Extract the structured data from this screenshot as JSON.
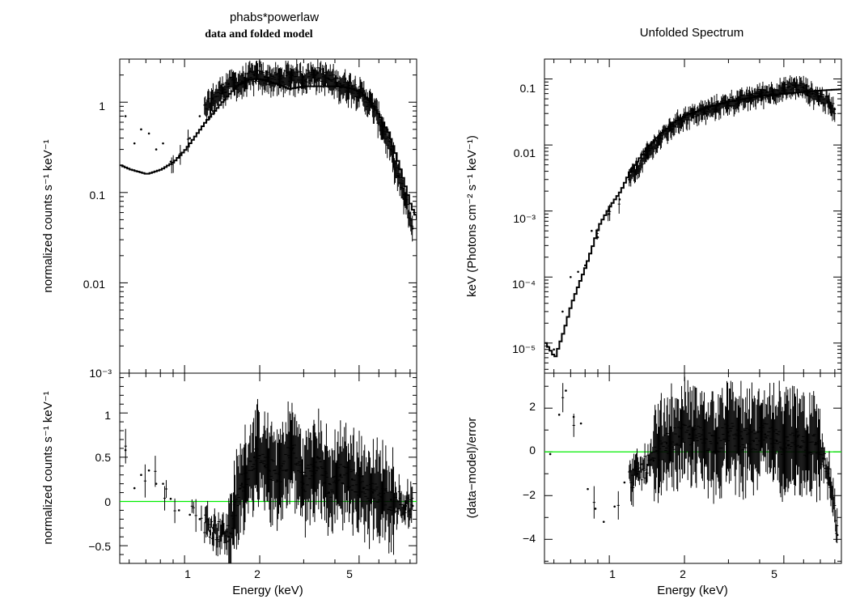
{
  "colors": {
    "data": "#000000",
    "model": "#000000",
    "zero_line": "#00ee00",
    "background": "#ffffff"
  },
  "left": {
    "title": "phabs*powerlaw",
    "subtitle": "data and folded model",
    "top_ylabel": "normalized counts s⁻¹ keV⁻¹",
    "bottom_ylabel": "normalized counts s⁻¹ keV⁻¹",
    "xlabel": "Energy (keV)",
    "x_ticks": [
      "1",
      "2",
      "5"
    ],
    "top_y_ticks": [
      "1",
      "0.1",
      "0.01",
      "10⁻³"
    ],
    "bottom_y_ticks": [
      "1",
      "0.5",
      "0",
      "−0.5"
    ]
  },
  "right": {
    "title": "Unfolded Spectrum",
    "top_ylabel": "keV (Photons cm⁻² s⁻¹ keV⁻¹)",
    "bottom_ylabel": "(data−model)/error",
    "xlabel": "Energy (keV)",
    "x_ticks": [
      "1",
      "2",
      "5"
    ],
    "top_y_ticks": [
      "0.1",
      "0.01",
      "10⁻³",
      "10⁻⁴",
      "10⁻⁵"
    ],
    "bottom_y_ticks": [
      "2",
      "0",
      "−2",
      "−4"
    ]
  },
  "chart_data": [
    {
      "type": "scatter",
      "panel": "left-top",
      "title": "phabs*powerlaw",
      "subtitle": "data and folded model",
      "xlabel": "",
      "ylabel": "normalized counts s⁻¹ keV⁻¹",
      "xscale": "log",
      "yscale": "log",
      "xlim": [
        0.55,
        8.5
      ],
      "ylim": [
        0.001,
        3.0
      ],
      "series": [
        {
          "style": "model",
          "x": [
            0.55,
            0.6,
            0.7,
            0.8,
            0.9,
            1.0,
            1.2,
            1.4,
            1.6,
            1.8,
            2.0,
            2.3,
            2.6,
            3.0,
            3.5,
            4.0,
            4.5,
            5.0,
            5.5,
            6.0,
            6.5,
            7.0,
            7.5,
            8.0,
            8.5
          ],
          "y": [
            0.2,
            0.18,
            0.16,
            0.18,
            0.22,
            0.3,
            0.6,
            1.0,
            1.5,
            1.8,
            1.8,
            1.6,
            1.4,
            1.5,
            1.5,
            1.5,
            1.45,
            1.3,
            1.0,
            0.7,
            0.45,
            0.25,
            0.13,
            0.07,
            0.05
          ]
        },
        {
          "style": "data",
          "x": [
            0.58,
            0.63,
            0.67,
            0.72,
            0.77,
            0.82,
            0.88,
            0.95,
            1.05,
            1.15,
            1.3,
            1.5,
            1.7,
            1.9,
            2.1,
            2.4,
            2.7,
            3.0,
            3.4,
            3.8,
            4.2,
            4.7,
            5.2,
            5.7,
            6.2,
            6.7,
            7.2,
            7.7,
            8.2
          ],
          "y": [
            0.7,
            0.35,
            0.5,
            0.45,
            0.3,
            0.35,
            0.22,
            0.25,
            0.4,
            0.7,
            1.1,
            1.6,
            1.7,
            2.0,
            1.9,
            1.8,
            2.0,
            1.9,
            2.1,
            1.8,
            1.6,
            1.5,
            1.2,
            0.9,
            0.55,
            0.3,
            0.15,
            0.08,
            0.04
          ]
        }
      ]
    },
    {
      "type": "scatter",
      "panel": "left-bottom",
      "xlabel": "Energy (keV)",
      "ylabel": "normalized counts s⁻¹ keV⁻¹",
      "xscale": "log",
      "xlim": [
        0.55,
        8.5
      ],
      "ylim": [
        -0.7,
        1.45
      ],
      "series": [
        {
          "style": "residual",
          "x": [
            0.58,
            0.63,
            0.67,
            0.72,
            0.77,
            0.82,
            0.88,
            0.95,
            1.05,
            1.15,
            1.3,
            1.5,
            1.7,
            1.9,
            2.1,
            2.4,
            2.7,
            3.0,
            3.4,
            3.8,
            4.2,
            4.7,
            5.2,
            5.7,
            6.2,
            6.7,
            7.2,
            7.7,
            8.2
          ],
          "y": [
            0.58,
            0.15,
            0.3,
            0.35,
            0.2,
            0.2,
            0.03,
            -0.1,
            -0.15,
            -0.2,
            -0.3,
            -0.4,
            0.2,
            0.5,
            0.4,
            0.3,
            0.6,
            0.2,
            0.5,
            0.1,
            0.3,
            0.25,
            0.15,
            0.1,
            0.05,
            0.02,
            0.0,
            -0.05,
            -0.05
          ]
        }
      ]
    },
    {
      "type": "scatter",
      "panel": "right-top",
      "title": "Unfolded Spectrum",
      "xlabel": "",
      "ylabel": "keV (Photons cm⁻² s⁻¹ keV⁻¹)",
      "xscale": "log",
      "yscale": "log",
      "xlim": [
        0.55,
        8.5
      ],
      "ylim": [
        3.5e-06,
        0.2
      ],
      "series": [
        {
          "style": "model",
          "x": [
            0.55,
            0.6,
            0.65,
            0.7,
            0.75,
            0.8,
            0.85,
            0.9,
            1.0,
            1.1,
            1.2,
            1.4,
            1.6,
            1.8,
            2.0,
            2.5,
            3.0,
            4.0,
            5.0,
            6.0,
            7.0,
            8.5
          ],
          "y": [
            1e-05,
            6e-06,
            1.5e-05,
            4e-05,
            8e-05,
            0.00015,
            0.0003,
            0.0006,
            0.0012,
            0.002,
            0.004,
            0.009,
            0.015,
            0.022,
            0.028,
            0.038,
            0.046,
            0.055,
            0.06,
            0.064,
            0.067,
            0.07
          ]
        },
        {
          "style": "data",
          "x": [
            0.6,
            0.65,
            0.7,
            0.75,
            0.8,
            0.85,
            0.9,
            1.0,
            1.1,
            1.2,
            1.4,
            1.6,
            1.8,
            2.0,
            2.5,
            3.0,
            3.5,
            4.0,
            4.5,
            5.0,
            5.5,
            6.0,
            6.5,
            7.0,
            7.5,
            8.0
          ],
          "y": [
            8e-06,
            3e-05,
            0.0001,
            0.00012,
            0.00015,
            0.0005,
            0.0004,
            0.0009,
            0.0015,
            0.003,
            0.007,
            0.013,
            0.02,
            0.027,
            0.035,
            0.045,
            0.05,
            0.06,
            0.065,
            0.07,
            0.08,
            0.075,
            0.06,
            0.055,
            0.045,
            0.035
          ]
        }
      ]
    },
    {
      "type": "scatter",
      "panel": "right-bottom",
      "xlabel": "Energy (keV)",
      "ylabel": "(data−model)/error",
      "xscale": "log",
      "xlim": [
        0.55,
        8.5
      ],
      "ylim": [
        -5.1,
        3.6
      ],
      "series": [
        {
          "style": "residual",
          "x": [
            0.58,
            0.63,
            0.67,
            0.72,
            0.77,
            0.82,
            0.88,
            0.95,
            1.05,
            1.15,
            1.3,
            1.5,
            1.7,
            1.9,
            2.1,
            2.4,
            2.7,
            3.0,
            3.4,
            3.8,
            4.2,
            4.7,
            5.2,
            5.7,
            6.2,
            6.7,
            7.2,
            7.7,
            8.2
          ],
          "y": [
            -0.1,
            1.7,
            2.8,
            1.6,
            1.3,
            -1.7,
            -2.6,
            -3.2,
            -2.5,
            -1.4,
            -1.0,
            -0.4,
            0.4,
            0.7,
            0.8,
            0.6,
            0.4,
            0.9,
            0.6,
            0.5,
            0.8,
            0.5,
            0.3,
            0.7,
            0.2,
            0.4,
            -0.3,
            -1.5,
            -3.8
          ]
        }
      ]
    }
  ]
}
